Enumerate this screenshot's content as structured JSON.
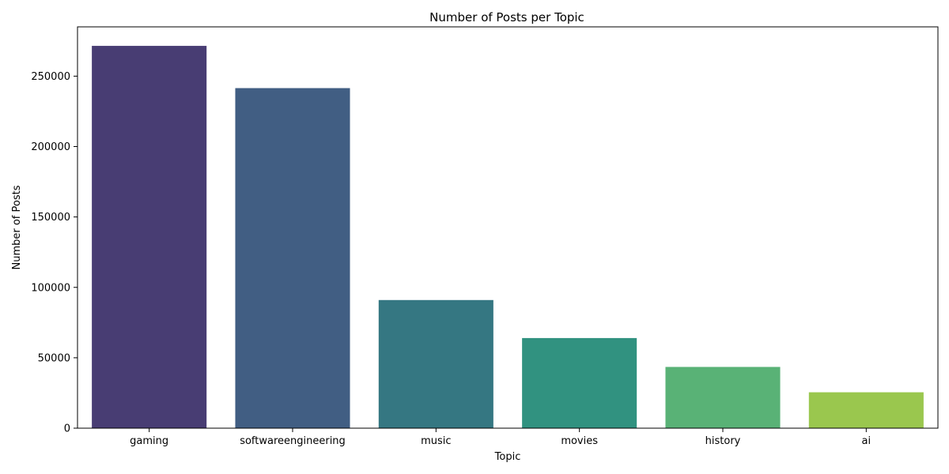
{
  "chart_data": {
    "type": "bar",
    "title": "Number of Posts per Topic",
    "xlabel": "Topic",
    "ylabel": "Number of Posts",
    "categories": [
      "gaming",
      "softwareengineering",
      "music",
      "movies",
      "history",
      "ai"
    ],
    "values": [
      271500,
      241500,
      91000,
      64000,
      43500,
      25500
    ],
    "colors": [
      "#483d73",
      "#415e83",
      "#357782",
      "#319280",
      "#59b276",
      "#9ac74e"
    ],
    "ylim": [
      0,
      285000
    ],
    "yticks": [
      0,
      50000,
      100000,
      150000,
      200000,
      250000
    ],
    "ytick_labels": [
      "0",
      "50000",
      "100000",
      "150000",
      "200000",
      "250000"
    ],
    "grid": false,
    "legend": "none"
  }
}
